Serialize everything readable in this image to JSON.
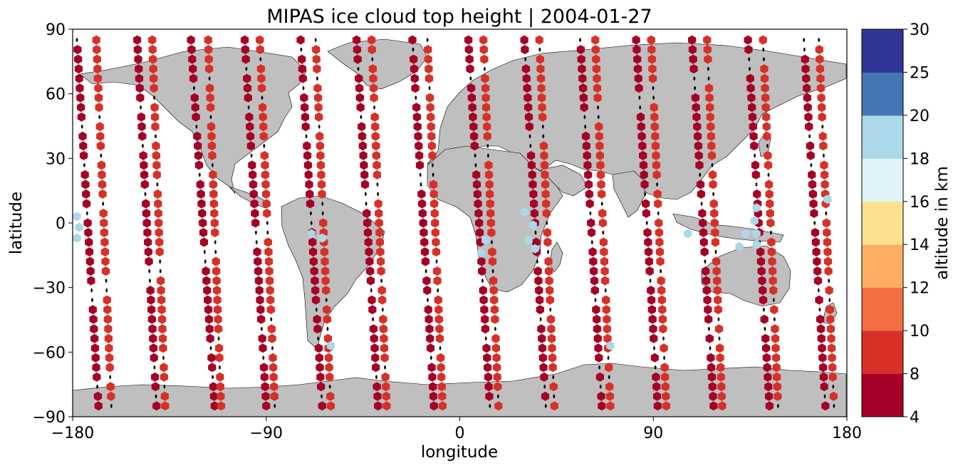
{
  "chart_data": {
    "type": "scatter",
    "title": "MIPAS ice cloud top height | 2004-01-27",
    "xlabel": "longitude",
    "ylabel": "latitude",
    "xlim": [
      -180,
      180
    ],
    "ylim": [
      -90,
      90
    ],
    "xticks": [
      -180,
      -90,
      0,
      90,
      180
    ],
    "yticks": [
      -90,
      -60,
      -30,
      0,
      30,
      60,
      90
    ],
    "xtick_labels": [
      "−180",
      "−90",
      "0",
      "90",
      "180"
    ],
    "ytick_labels": [
      "−90",
      "−60",
      "−30",
      "0",
      "30",
      "60",
      "90"
    ],
    "grid": false,
    "background_map": "world coastlines, land grey #bfbfbf",
    "colorbar": {
      "label": "altitude in km",
      "boundaries": [
        4,
        8,
        10,
        12,
        14,
        16,
        18,
        20,
        25,
        30
      ],
      "tick_labels": [
        "4",
        "8",
        "10",
        "12",
        "14",
        "16",
        "18",
        "20",
        "25",
        "30"
      ],
      "colors": [
        "#a50026",
        "#d73027",
        "#f46d43",
        "#fdae61",
        "#fee090",
        "#ffffbf",
        "#e0f3f8",
        "#abd9e9",
        "#74add1",
        "#313695"
      ],
      "colors_used": [
        "#a50026",
        "#d73027",
        "#f46d43",
        "#fdae61",
        "#fee090",
        "#e0f3f8",
        "#abd9e9",
        "#4575b4",
        "#313695"
      ]
    },
    "cloud_free_marker": "black dots along orbit tracks",
    "orbit_tracks": [
      {
        "lon_start": -178,
        "lon_end": -168,
        "alt_km": 6
      },
      {
        "lon_start": -169,
        "lon_end": -162,
        "alt_km": 9
      },
      {
        "lon_start": -150,
        "lon_end": -141,
        "alt_km": 6
      },
      {
        "lon_start": -143,
        "lon_end": -137,
        "alt_km": 9
      },
      {
        "lon_start": -125,
        "lon_end": -114,
        "alt_km": 6
      },
      {
        "lon_start": -117,
        "lon_end": -111,
        "alt_km": 9
      },
      {
        "lon_start": -100,
        "lon_end": -90,
        "alt_km": 6
      },
      {
        "lon_start": -93,
        "lon_end": -86,
        "alt_km": 9
      },
      {
        "lon_start": -74,
        "lon_end": -64,
        "alt_km": 6
      },
      {
        "lon_start": -67,
        "lon_end": -60,
        "alt_km": 9
      },
      {
        "lon_start": -48,
        "lon_end": -38,
        "alt_km": 6
      },
      {
        "lon_start": -41,
        "lon_end": -34,
        "alt_km": 9
      },
      {
        "lon_start": -22,
        "lon_end": -12,
        "alt_km": 6
      },
      {
        "lon_start": -15,
        "lon_end": -8,
        "alt_km": 9
      },
      {
        "lon_start": 4,
        "lon_end": 14,
        "alt_km": 6
      },
      {
        "lon_start": 11,
        "lon_end": 18,
        "alt_km": 9
      },
      {
        "lon_start": 30,
        "lon_end": 40,
        "alt_km": 6
      },
      {
        "lon_start": 37,
        "lon_end": 44,
        "alt_km": 9
      },
      {
        "lon_start": 56,
        "lon_end": 66,
        "alt_km": 6
      },
      {
        "lon_start": 63,
        "lon_end": 70,
        "alt_km": 9
      },
      {
        "lon_start": 82,
        "lon_end": 92,
        "alt_km": 6
      },
      {
        "lon_start": 89,
        "lon_end": 96,
        "alt_km": 9
      },
      {
        "lon_start": 108,
        "lon_end": 118,
        "alt_km": 6
      },
      {
        "lon_start": 115,
        "lon_end": 122,
        "alt_km": 9
      },
      {
        "lon_start": 134,
        "lon_end": 144,
        "alt_km": 6
      },
      {
        "lon_start": 141,
        "lon_end": 148,
        "alt_km": 9
      },
      {
        "lon_start": 160,
        "lon_end": 170,
        "alt_km": 6
      },
      {
        "lon_start": 167,
        "lon_end": 174,
        "alt_km": 9
      }
    ],
    "points": [
      {
        "lon": -178,
        "lat": 3,
        "alt_km": 19
      },
      {
        "lon": -178,
        "lat": -7,
        "alt_km": 19
      },
      {
        "lon": -177,
        "lat": -2,
        "alt_km": 19
      },
      {
        "lon": -60,
        "lat": -57,
        "alt_km": 19
      },
      {
        "lon": -64,
        "lat": -7,
        "alt_km": 19
      },
      {
        "lon": -69,
        "lat": -5,
        "alt_km": 19
      },
      {
        "lon": 30,
        "lat": 5,
        "alt_km": 19
      },
      {
        "lon": 32,
        "lat": -8,
        "alt_km": 19
      },
      {
        "lon": 35,
        "lat": -12,
        "alt_km": 19
      },
      {
        "lon": 34,
        "lat": -1,
        "alt_km": 19
      },
      {
        "lon": 12,
        "lat": -8,
        "alt_km": 19
      },
      {
        "lon": 10,
        "lat": -14,
        "alt_km": 19
      },
      {
        "lon": 70,
        "lat": -57,
        "alt_km": 19
      },
      {
        "lon": 106,
        "lat": -5,
        "alt_km": 19
      },
      {
        "lon": 130,
        "lat": -11,
        "alt_km": 19
      },
      {
        "lon": 133,
        "lat": -5,
        "alt_km": 19
      },
      {
        "lon": 137,
        "lat": 1,
        "alt_km": 19
      },
      {
        "lon": 138,
        "lat": -5,
        "alt_km": 19
      },
      {
        "lon": 138,
        "lat": -10,
        "alt_km": 19
      },
      {
        "lon": 138,
        "lat": 7,
        "alt_km": 19
      },
      {
        "lon": 171,
        "lat": 11,
        "alt_km": 19
      }
    ]
  }
}
